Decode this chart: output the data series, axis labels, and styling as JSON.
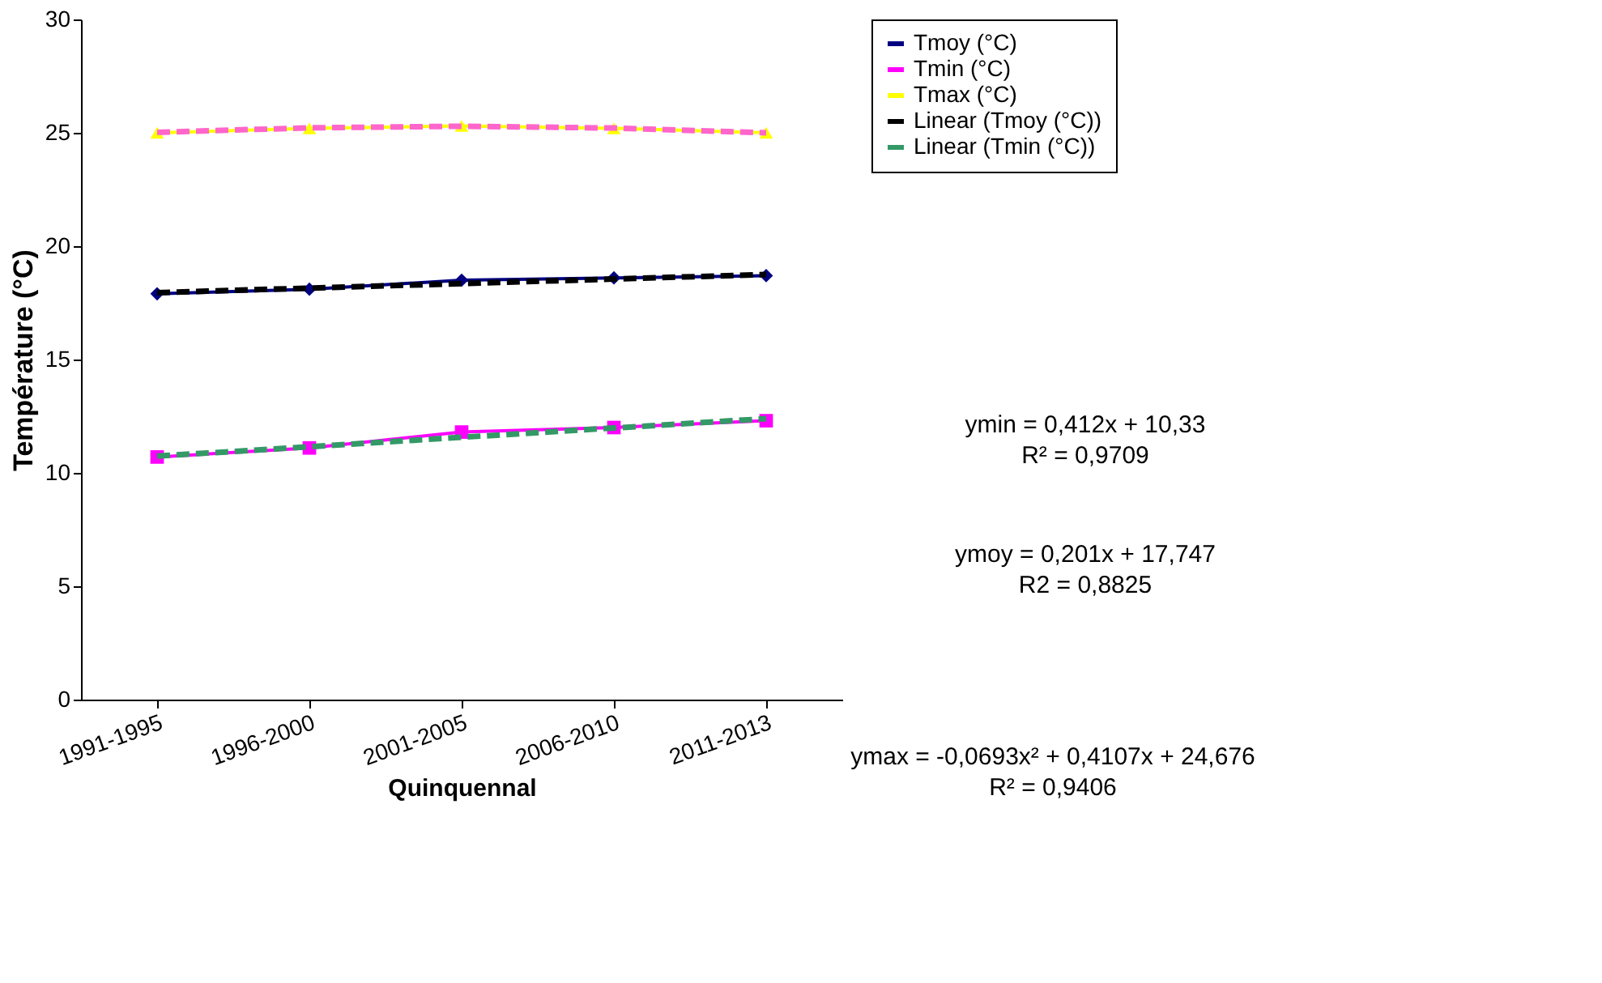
{
  "chart_data": {
    "type": "line",
    "xlabel": "Quinquennal",
    "ylabel": "Température (°C)",
    "categories": [
      "1991-1995",
      "1996-2000",
      "2001-2005",
      "2006-2010",
      "2011-2013"
    ],
    "series": [
      {
        "name": "Tmoy (°C)",
        "color": "#000080",
        "marker": "diamond",
        "line_style": "solid",
        "values": [
          17.9,
          18.1,
          18.5,
          18.6,
          18.7
        ]
      },
      {
        "name": "Tmin (°C)",
        "color": "#ff00ff",
        "marker": "square",
        "line_style": "solid",
        "values": [
          10.7,
          11.1,
          11.8,
          12.0,
          12.3
        ]
      },
      {
        "name": "Tmax (°C)",
        "color": "#ffff00",
        "marker": "triangle",
        "line_style": "solid",
        "values": [
          25.0,
          25.2,
          25.3,
          25.2,
          25.0
        ]
      },
      {
        "name": "Linear (Tmoy (°C))",
        "color": "#000000",
        "marker": "none",
        "line_style": "dashed",
        "values": [
          17.95,
          18.15,
          18.35,
          18.55,
          18.75
        ]
      },
      {
        "name": "Linear (Tmin (°C))",
        "color": "#339966",
        "marker": "none",
        "line_style": "dashed",
        "values": [
          10.74,
          11.15,
          11.57,
          11.98,
          12.39
        ]
      },
      {
        "color": "#ff66cc",
        "marker": "none",
        "line_style": "dashed",
        "values": [
          25.02,
          25.22,
          25.29,
          25.21,
          25.0
        ]
      }
    ],
    "ylim": [
      0,
      30
    ],
    "yticks": [
      0,
      5,
      10,
      15,
      20,
      25,
      30
    ],
    "grid": false,
    "legend": "top right",
    "annotations": [
      "ymin = 0,412x + 10,33\nR² = 0,9709",
      "ymoy = 0,201x + 17,747\nR2 = 0,8825",
      "ymax = -0,0693x² + 0,4107x + 24,676\nR² = 0,9406"
    ]
  }
}
